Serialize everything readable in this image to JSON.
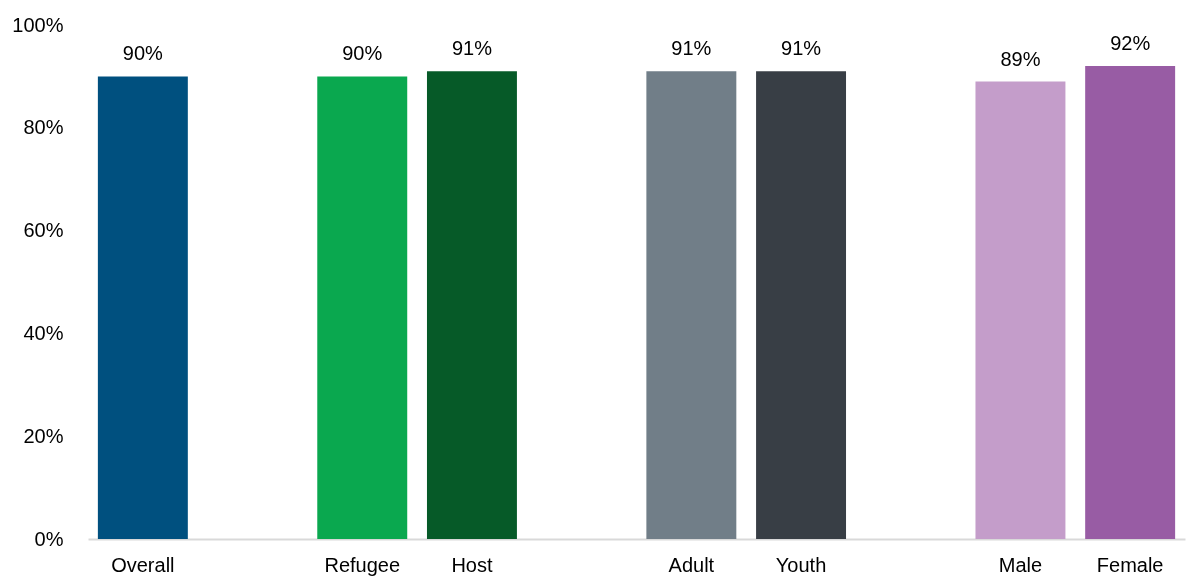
{
  "chart_data": {
    "type": "bar",
    "categories": [
      "Overall",
      null,
      "Refugee",
      "Host",
      null,
      "Adult",
      "Youth",
      null,
      "Male",
      "Female"
    ],
    "values": [
      90,
      null,
      90,
      91,
      null,
      91,
      91,
      null,
      89,
      92
    ],
    "colors": [
      "#00507f",
      "#00507f",
      "#0aa84f",
      "#065a28",
      "#065a28",
      "#717e88",
      "#383e45",
      "#383e45",
      "#c49dca",
      "#985ca4"
    ],
    "value_labels": [
      "90%",
      null,
      "90%",
      "91%",
      null,
      "91%",
      "91%",
      null,
      "89%",
      "92%"
    ],
    "ylim": [
      0,
      100
    ],
    "yticks": [
      {
        "value": 0,
        "label": "0%"
      },
      {
        "value": 20,
        "label": "20%"
      },
      {
        "value": 40,
        "label": "40%"
      },
      {
        "value": 60,
        "label": "60%"
      },
      {
        "value": 80,
        "label": "80%"
      },
      {
        "value": 100,
        "label": "100%"
      }
    ]
  }
}
